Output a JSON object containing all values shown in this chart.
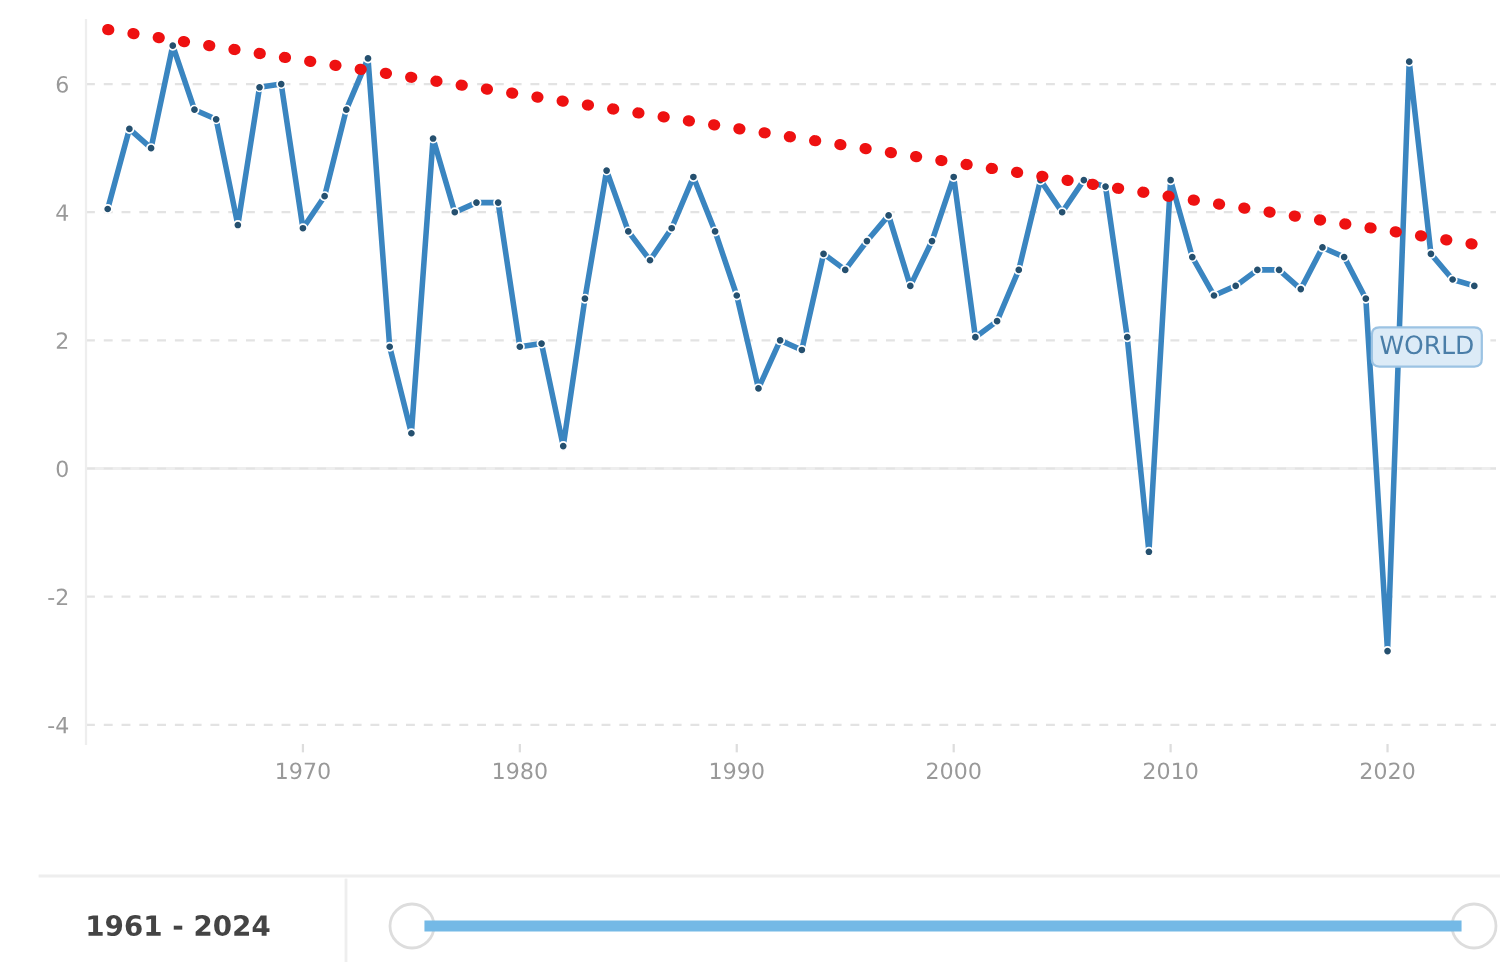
{
  "chart_data": {
    "type": "line",
    "x": [
      1961,
      1962,
      1963,
      1964,
      1965,
      1966,
      1967,
      1968,
      1969,
      1970,
      1971,
      1972,
      1973,
      1974,
      1975,
      1976,
      1977,
      1978,
      1979,
      1980,
      1981,
      1982,
      1983,
      1984,
      1985,
      1986,
      1987,
      1988,
      1989,
      1990,
      1991,
      1992,
      1993,
      1994,
      1995,
      1996,
      1997,
      1998,
      1999,
      2000,
      2001,
      2002,
      2003,
      2004,
      2005,
      2006,
      2007,
      2008,
      2009,
      2010,
      2011,
      2012,
      2013,
      2014,
      2015,
      2016,
      2017,
      2018,
      2019,
      2020,
      2021,
      2022,
      2023,
      2024
    ],
    "series": [
      {
        "name": "WORLD",
        "color": "#3a85c0",
        "marker": "circle",
        "values": [
          4.05,
          5.3,
          5.0,
          6.6,
          5.6,
          5.45,
          3.8,
          5.95,
          6.0,
          3.75,
          4.25,
          5.6,
          6.4,
          1.9,
          0.55,
          5.15,
          4.0,
          4.15,
          4.15,
          1.9,
          1.95,
          0.35,
          2.65,
          4.65,
          3.7,
          3.25,
          3.75,
          4.55,
          3.7,
          2.7,
          1.25,
          2.0,
          1.85,
          3.35,
          3.1,
          3.55,
          3.95,
          2.85,
          3.55,
          4.55,
          2.05,
          2.3,
          3.1,
          4.5,
          4.0,
          4.5,
          4.4,
          2.05,
          -1.3,
          4.5,
          3.3,
          2.7,
          2.85,
          3.1,
          3.1,
          2.8,
          3.45,
          3.3,
          2.65,
          -2.85,
          6.35,
          3.35,
          2.95,
          2.85
        ]
      },
      {
        "type": "line",
        "color": "#ee1111",
        "line_style": "dotted",
        "marker": "none",
        "x": [
          1961,
          2024
        ],
        "values": [
          6.85,
          3.5
        ]
      }
    ],
    "xlim": [
      1960,
      2025
    ],
    "ylim": [
      -4.3,
      7
    ],
    "xticks": [
      1970,
      1980,
      1990,
      2000,
      2010,
      2020
    ],
    "yticks": [
      -4,
      -2,
      0,
      2,
      4,
      6
    ],
    "grid": "y",
    "legend": false,
    "annotations": [
      "1961 - 2024"
    ]
  }
}
